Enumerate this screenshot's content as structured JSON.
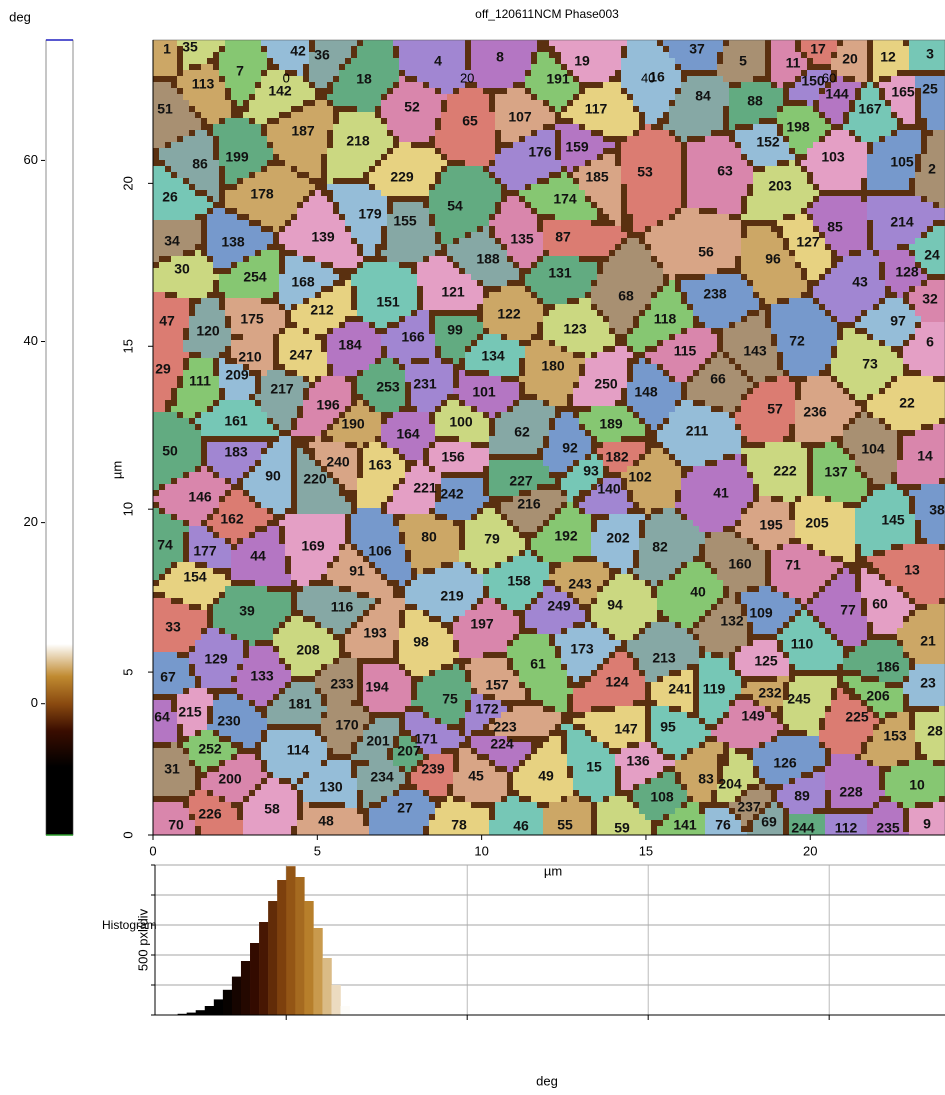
{
  "chart_data": [
    {
      "type": "image",
      "title": "off_120611NCM Phase003",
      "xlabel": "µm",
      "ylabel": "µm",
      "xlim": [
        0,
        24.1
      ],
      "ylim": [
        0,
        24.4
      ],
      "xticks": [
        0,
        5,
        10,
        15,
        20
      ],
      "yticks": [
        0,
        5,
        10,
        15,
        20
      ],
      "grain_labels": [
        1,
        35,
        7,
        42,
        36,
        18,
        4,
        8,
        19,
        37,
        5,
        11,
        17,
        20,
        12,
        3,
        113,
        142,
        191,
        16,
        84,
        88,
        150,
        144,
        165,
        25,
        51,
        52,
        65,
        107,
        117,
        167,
        187,
        218,
        198,
        152,
        86,
        199,
        176,
        159,
        103,
        105,
        2,
        63,
        53,
        185,
        229,
        26,
        178,
        203,
        174,
        179,
        155,
        54,
        214,
        85,
        139,
        138,
        34,
        135,
        87,
        56,
        127,
        24,
        96,
        30,
        254,
        168,
        188,
        131,
        43,
        128,
        121,
        238,
        68,
        32,
        47,
        175,
        212,
        151,
        122,
        123,
        118,
        97,
        120,
        99,
        166,
        184,
        6,
        72,
        143,
        115,
        29,
        210,
        247,
        134,
        180,
        73,
        111,
        209,
        217,
        253,
        231,
        101,
        250,
        148,
        66,
        196,
        57,
        236,
        22,
        161,
        190,
        100,
        189,
        211,
        62,
        50,
        183,
        164,
        156,
        92,
        104,
        14,
        182,
        240,
        163,
        93,
        102,
        222,
        137,
        90,
        220,
        227,
        140,
        41,
        221,
        242,
        216,
        146,
        162,
        195,
        205,
        145,
        80,
        79,
        192,
        202,
        82,
        74,
        177,
        44,
        169,
        106,
        160,
        71,
        13,
        91,
        154,
        158,
        243,
        94,
        40,
        219,
        116,
        39,
        249,
        77,
        60,
        109,
        132,
        197,
        33,
        193,
        98,
        110,
        21,
        208,
        61,
        173,
        213,
        186,
        129,
        133,
        125,
        67,
        233,
        194,
        124,
        157,
        241,
        119,
        232,
        245,
        206,
        23,
        181,
        75,
        172,
        64,
        215,
        230,
        170,
        149,
        225,
        223,
        147,
        95,
        153,
        28,
        252,
        114,
        201,
        207,
        171,
        224,
        136,
        126,
        31,
        200,
        239,
        45,
        49,
        15,
        83,
        204,
        10,
        130,
        234,
        108,
        89,
        228,
        58,
        27,
        237,
        70,
        226,
        48,
        78,
        46,
        55,
        59,
        141,
        76,
        69,
        244,
        112,
        235,
        9,
        38
      ]
    },
    {
      "type": "colorbar",
      "label": "deg",
      "ylim": [
        -14.5,
        73.3
      ],
      "yticks": [
        0,
        20,
        40,
        60
      ],
      "stops": [
        {
          "value": -7,
          "color": "#000000"
        },
        {
          "value": -3,
          "color": "#3a0d00"
        },
        {
          "value": 0,
          "color": "#8a4a10"
        },
        {
          "value": 3,
          "color": "#c08a30"
        },
        {
          "value": 6.6,
          "color": "#ffffff"
        }
      ]
    },
    {
      "type": "histogram",
      "title": "Histogram",
      "ylabel": "500 pxl/div",
      "xlabel": "deg",
      "xlim": [
        -14.5,
        72.8
      ],
      "xticks": [
        0,
        20,
        40,
        60
      ],
      "ylim": [
        0,
        2500
      ],
      "yticks": [
        0,
        500,
        1000,
        1500,
        2000,
        2500
      ],
      "bins": [
        -12,
        -11,
        -10,
        -9,
        -8,
        -7,
        -6,
        -5,
        -4,
        -3,
        -2,
        -1,
        0,
        1,
        2,
        3,
        4,
        5,
        6,
        7
      ],
      "counts": [
        20,
        40,
        80,
        150,
        260,
        420,
        640,
        900,
        1200,
        1550,
        1900,
        2250,
        2480,
        2300,
        1900,
        1450,
        950,
        500,
        150
      ]
    }
  ]
}
